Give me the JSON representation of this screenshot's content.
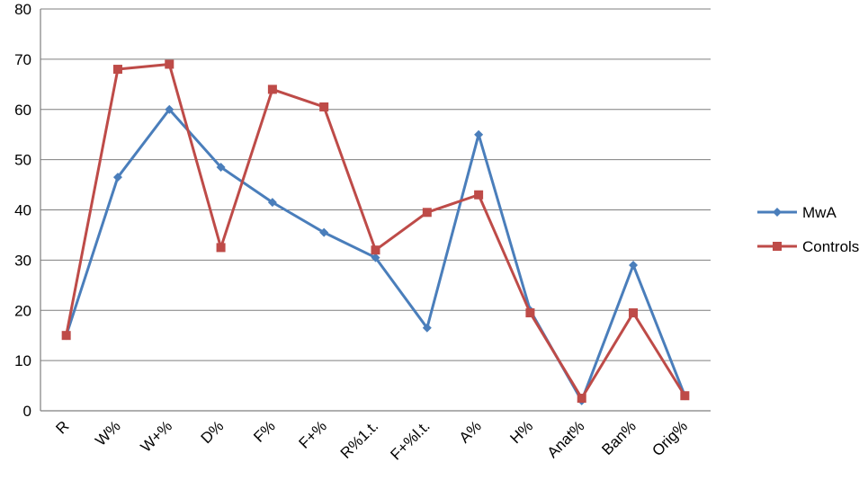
{
  "chart_data": {
    "type": "line",
    "title": "",
    "xlabel": "",
    "ylabel": "",
    "categories": [
      "R",
      "W%",
      "W+%",
      "D%",
      "F%",
      "F+%",
      "R%1.t.",
      "F+%l.t.",
      "A%",
      "H%",
      "Anat%",
      "Ban%",
      "Orig%"
    ],
    "ylim": [
      0,
      80
    ],
    "yticks": [
      0,
      10,
      20,
      30,
      40,
      50,
      60,
      70,
      80
    ],
    "grid": "horizontal",
    "legend_position": "right",
    "series": [
      {
        "name": "MwA",
        "color": "#4a7ebb",
        "marker": "diamond",
        "values": [
          15,
          46.5,
          60,
          48.5,
          41.5,
          35.5,
          30.5,
          16.5,
          55,
          20,
          2,
          29,
          3
        ]
      },
      {
        "name": "Controls",
        "color": "#be4b48",
        "marker": "square",
        "values": [
          15,
          68,
          69,
          32.5,
          64,
          60.5,
          32,
          39.5,
          43,
          19.5,
          2.5,
          19.5,
          3
        ]
      }
    ]
  }
}
